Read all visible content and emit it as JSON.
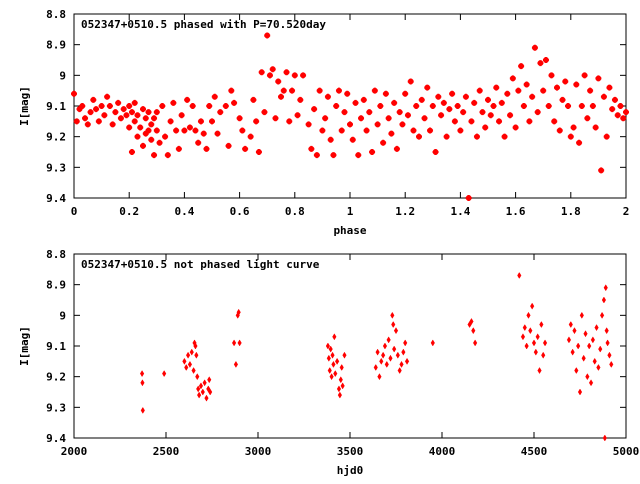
{
  "chart_data": [
    {
      "type": "scatter",
      "title": "052347+0510.5 phased with P=70.520day",
      "xlabel": "phase",
      "ylabel": "I[mag]",
      "xlim": [
        0,
        2
      ],
      "ylim": [
        8.8,
        9.4
      ],
      "y_inverted": true,
      "grid": false,
      "marker": "star",
      "color": "#ff0000",
      "xticks": [
        "0",
        "0.2",
        "0.4",
        "0.6",
        "0.8",
        "1",
        "1.2",
        "1.4",
        "1.6",
        "1.8",
        "2"
      ],
      "xtick_values": [
        0,
        0.2,
        0.4,
        0.6,
        0.8,
        1.0,
        1.2,
        1.4,
        1.6,
        1.8,
        2.0
      ],
      "yticks": [
        "8.8",
        "8.9",
        "9",
        "9.1",
        "9.2",
        "9.3",
        "9.4"
      ],
      "ytick_values": [
        8.8,
        8.9,
        9.0,
        9.1,
        9.2,
        9.3,
        9.4
      ],
      "points": [
        [
          0.0,
          9.06
        ],
        [
          0.01,
          9.15
        ],
        [
          0.02,
          9.11
        ],
        [
          0.03,
          9.1
        ],
        [
          0.04,
          9.14
        ],
        [
          0.05,
          9.16
        ],
        [
          0.06,
          9.12
        ],
        [
          0.07,
          9.08
        ],
        [
          0.08,
          9.11
        ],
        [
          0.09,
          9.15
        ],
        [
          0.1,
          9.1
        ],
        [
          0.11,
          9.13
        ],
        [
          0.12,
          9.07
        ],
        [
          0.13,
          9.1
        ],
        [
          0.14,
          9.16
        ],
        [
          0.15,
          9.12
        ],
        [
          0.16,
          9.09
        ],
        [
          0.17,
          9.14
        ],
        [
          0.18,
          9.11
        ],
        [
          0.19,
          9.13
        ],
        [
          0.2,
          9.1
        ],
        [
          0.2,
          9.17
        ],
        [
          0.21,
          9.12
        ],
        [
          0.21,
          9.25
        ],
        [
          0.22,
          9.15
        ],
        [
          0.22,
          9.09
        ],
        [
          0.23,
          9.13
        ],
        [
          0.23,
          9.2
        ],
        [
          0.24,
          9.17
        ],
        [
          0.25,
          9.11
        ],
        [
          0.25,
          9.23
        ],
        [
          0.26,
          9.14
        ],
        [
          0.26,
          9.19
        ],
        [
          0.27,
          9.12
        ],
        [
          0.27,
          9.18
        ],
        [
          0.28,
          9.16
        ],
        [
          0.28,
          9.21
        ],
        [
          0.29,
          9.14
        ],
        [
          0.29,
          9.26
        ],
        [
          0.3,
          9.18
        ],
        [
          0.3,
          9.12
        ],
        [
          0.31,
          9.22
        ],
        [
          0.32,
          9.1
        ],
        [
          0.33,
          9.2
        ],
        [
          0.34,
          9.26
        ],
        [
          0.35,
          9.15
        ],
        [
          0.36,
          9.09
        ],
        [
          0.37,
          9.18
        ],
        [
          0.38,
          9.24
        ],
        [
          0.39,
          9.13
        ],
        [
          0.4,
          9.18
        ],
        [
          0.41,
          9.08
        ],
        [
          0.42,
          9.17
        ],
        [
          0.43,
          9.1
        ],
        [
          0.44,
          9.18
        ],
        [
          0.45,
          9.22
        ],
        [
          0.46,
          9.15
        ],
        [
          0.47,
          9.19
        ],
        [
          0.48,
          9.24
        ],
        [
          0.49,
          9.1
        ],
        [
          0.5,
          9.15
        ],
        [
          0.51,
          9.07
        ],
        [
          0.52,
          9.19
        ],
        [
          0.53,
          9.12
        ],
        [
          0.55,
          9.1
        ],
        [
          0.56,
          9.23
        ],
        [
          0.57,
          9.05
        ],
        [
          0.58,
          9.09
        ],
        [
          0.6,
          9.14
        ],
        [
          0.61,
          9.18
        ],
        [
          0.62,
          9.24
        ],
        [
          0.64,
          9.2
        ],
        [
          0.65,
          9.08
        ],
        [
          0.66,
          9.15
        ],
        [
          0.67,
          9.25
        ],
        [
          0.68,
          8.99
        ],
        [
          0.69,
          9.12
        ],
        [
          0.7,
          8.87
        ],
        [
          0.71,
          9.0
        ],
        [
          0.72,
          8.98
        ],
        [
          0.73,
          9.14
        ],
        [
          0.74,
          9.02
        ],
        [
          0.75,
          9.07
        ],
        [
          0.76,
          9.05
        ],
        [
          0.77,
          8.99
        ],
        [
          0.78,
          9.15
        ],
        [
          0.79,
          9.05
        ],
        [
          0.8,
          9.0
        ],
        [
          0.81,
          9.13
        ],
        [
          0.82,
          9.08
        ],
        [
          0.83,
          9.0
        ],
        [
          0.85,
          9.16
        ],
        [
          0.86,
          9.24
        ],
        [
          0.87,
          9.11
        ],
        [
          0.88,
          9.26
        ],
        [
          0.89,
          9.05
        ],
        [
          0.9,
          9.18
        ],
        [
          0.91,
          9.14
        ],
        [
          0.92,
          9.07
        ],
        [
          0.93,
          9.21
        ],
        [
          0.94,
          9.26
        ],
        [
          0.95,
          9.1
        ],
        [
          0.96,
          9.05
        ],
        [
          0.97,
          9.18
        ],
        [
          0.98,
          9.12
        ],
        [
          0.99,
          9.06
        ],
        [
          1.0,
          9.16
        ],
        [
          1.01,
          9.21
        ],
        [
          1.02,
          9.09
        ],
        [
          1.03,
          9.26
        ],
        [
          1.04,
          9.14
        ],
        [
          1.05,
          9.08
        ],
        [
          1.06,
          9.18
        ],
        [
          1.07,
          9.12
        ],
        [
          1.08,
          9.25
        ],
        [
          1.09,
          9.05
        ],
        [
          1.1,
          9.16
        ],
        [
          1.11,
          9.1
        ],
        [
          1.12,
          9.22
        ],
        [
          1.13,
          9.06
        ],
        [
          1.14,
          9.14
        ],
        [
          1.15,
          9.19
        ],
        [
          1.16,
          9.09
        ],
        [
          1.17,
          9.24
        ],
        [
          1.18,
          9.12
        ],
        [
          1.19,
          9.16
        ],
        [
          1.2,
          9.06
        ],
        [
          1.21,
          9.13
        ],
        [
          1.22,
          9.02
        ],
        [
          1.23,
          9.18
        ],
        [
          1.24,
          9.1
        ],
        [
          1.25,
          9.2
        ],
        [
          1.26,
          9.08
        ],
        [
          1.27,
          9.14
        ],
        [
          1.28,
          9.04
        ],
        [
          1.29,
          9.18
        ],
        [
          1.3,
          9.1
        ],
        [
          1.31,
          9.25
        ],
        [
          1.32,
          9.07
        ],
        [
          1.33,
          9.13
        ],
        [
          1.34,
          9.09
        ],
        [
          1.35,
          9.2
        ],
        [
          1.36,
          9.11
        ],
        [
          1.37,
          9.06
        ],
        [
          1.38,
          9.15
        ],
        [
          1.39,
          9.1
        ],
        [
          1.4,
          9.18
        ],
        [
          1.41,
          9.12
        ],
        [
          1.42,
          9.07
        ],
        [
          1.43,
          9.4
        ],
        [
          1.44,
          9.15
        ],
        [
          1.45,
          9.09
        ],
        [
          1.46,
          9.2
        ],
        [
          1.47,
          9.05
        ],
        [
          1.48,
          9.12
        ],
        [
          1.49,
          9.17
        ],
        [
          1.5,
          9.08
        ],
        [
          1.51,
          9.13
        ],
        [
          1.52,
          9.1
        ],
        [
          1.53,
          9.04
        ],
        [
          1.54,
          9.15
        ],
        [
          1.55,
          9.09
        ],
        [
          1.56,
          9.2
        ],
        [
          1.57,
          9.06
        ],
        [
          1.58,
          9.13
        ],
        [
          1.59,
          9.01
        ],
        [
          1.6,
          9.17
        ],
        [
          1.61,
          9.05
        ],
        [
          1.62,
          8.97
        ],
        [
          1.63,
          9.1
        ],
        [
          1.64,
          9.03
        ],
        [
          1.65,
          9.15
        ],
        [
          1.66,
          9.07
        ],
        [
          1.67,
          8.91
        ],
        [
          1.68,
          9.12
        ],
        [
          1.69,
          8.96
        ],
        [
          1.7,
          9.05
        ],
        [
          1.71,
          8.95
        ],
        [
          1.72,
          9.1
        ],
        [
          1.73,
          9.0
        ],
        [
          1.74,
          9.15
        ],
        [
          1.75,
          9.04
        ],
        [
          1.76,
          9.18
        ],
        [
          1.77,
          9.08
        ],
        [
          1.78,
          9.02
        ],
        [
          1.79,
          9.1
        ],
        [
          1.8,
          9.2
        ],
        [
          1.81,
          9.17
        ],
        [
          1.82,
          9.03
        ],
        [
          1.83,
          9.22
        ],
        [
          1.84,
          9.1
        ],
        [
          1.85,
          9.0
        ],
        [
          1.86,
          9.14
        ],
        [
          1.87,
          9.05
        ],
        [
          1.88,
          9.1
        ],
        [
          1.89,
          9.17
        ],
        [
          1.9,
          9.01
        ],
        [
          1.91,
          9.31
        ],
        [
          1.92,
          9.07
        ],
        [
          1.93,
          9.2
        ],
        [
          1.94,
          9.04
        ],
        [
          1.95,
          9.11
        ],
        [
          1.96,
          9.08
        ],
        [
          1.97,
          9.13
        ],
        [
          1.98,
          9.1
        ],
        [
          1.99,
          9.14
        ],
        [
          2.0,
          9.12
        ]
      ]
    },
    {
      "type": "scatter",
      "title": "052347+0510.5 not phased light curve",
      "xlabel": "hjd0",
      "ylabel": "I[mag]",
      "xlim": [
        2000,
        5000
      ],
      "ylim": [
        8.8,
        9.4
      ],
      "y_inverted": true,
      "grid": false,
      "marker": "diamond",
      "color": "#ff0000",
      "xticks": [
        "2000",
        "2500",
        "3000",
        "3500",
        "4000",
        "4500",
        "5000"
      ],
      "xtick_values": [
        2000,
        2500,
        3000,
        3500,
        4000,
        4500,
        5000
      ],
      "yticks": [
        "8.8",
        "8.9",
        "9",
        "9.1",
        "9.2",
        "9.3",
        "9.4"
      ],
      "ytick_values": [
        8.8,
        8.9,
        9.0,
        9.1,
        9.2,
        9.3,
        9.4
      ],
      "points": [
        [
          2370,
          9.19
        ],
        [
          2372,
          9.22
        ],
        [
          2374,
          9.31
        ],
        [
          2490,
          9.19
        ],
        [
          2600,
          9.15
        ],
        [
          2610,
          9.17
        ],
        [
          2620,
          9.13
        ],
        [
          2630,
          9.16
        ],
        [
          2640,
          9.12
        ],
        [
          2650,
          9.18
        ],
        [
          2655,
          9.09
        ],
        [
          2660,
          9.1
        ],
        [
          2665,
          9.13
        ],
        [
          2670,
          9.2
        ],
        [
          2675,
          9.24
        ],
        [
          2680,
          9.26
        ],
        [
          2690,
          9.23
        ],
        [
          2700,
          9.25
        ],
        [
          2710,
          9.22
        ],
        [
          2720,
          9.27
        ],
        [
          2730,
          9.24
        ],
        [
          2735,
          9.21
        ],
        [
          2740,
          9.25
        ],
        [
          2870,
          9.09
        ],
        [
          2880,
          9.16
        ],
        [
          2890,
          9.0
        ],
        [
          2895,
          8.99
        ],
        [
          2900,
          9.09
        ],
        [
          3380,
          9.1
        ],
        [
          3385,
          9.14
        ],
        [
          3390,
          9.18
        ],
        [
          3395,
          9.11
        ],
        [
          3400,
          9.2
        ],
        [
          3405,
          9.13
        ],
        [
          3410,
          9.16
        ],
        [
          3415,
          9.07
        ],
        [
          3420,
          9.19
        ],
        [
          3430,
          9.15
        ],
        [
          3440,
          9.24
        ],
        [
          3445,
          9.26
        ],
        [
          3450,
          9.21
        ],
        [
          3455,
          9.17
        ],
        [
          3460,
          9.23
        ],
        [
          3470,
          9.13
        ],
        [
          3640,
          9.17
        ],
        [
          3650,
          9.12
        ],
        [
          3660,
          9.2
        ],
        [
          3670,
          9.15
        ],
        [
          3680,
          9.13
        ],
        [
          3690,
          9.1
        ],
        [
          3700,
          9.16
        ],
        [
          3710,
          9.08
        ],
        [
          3720,
          9.14
        ],
        [
          3730,
          9.0
        ],
        [
          3735,
          9.03
        ],
        [
          3740,
          9.11
        ],
        [
          3750,
          9.05
        ],
        [
          3760,
          9.13
        ],
        [
          3770,
          9.18
        ],
        [
          3780,
          9.16
        ],
        [
          3790,
          9.12
        ],
        [
          3800,
          9.09
        ],
        [
          3810,
          9.15
        ],
        [
          3950,
          9.09
        ],
        [
          4150,
          9.03
        ],
        [
          4160,
          9.02
        ],
        [
          4170,
          9.05
        ],
        [
          4180,
          9.09
        ],
        [
          4420,
          8.87
        ],
        [
          4440,
          9.07
        ],
        [
          4450,
          9.04
        ],
        [
          4460,
          9.1
        ],
        [
          4470,
          9.0
        ],
        [
          4480,
          9.05
        ],
        [
          4490,
          8.97
        ],
        [
          4500,
          9.09
        ],
        [
          4510,
          9.12
        ],
        [
          4520,
          9.07
        ],
        [
          4530,
          9.18
        ],
        [
          4540,
          9.03
        ],
        [
          4550,
          9.13
        ],
        [
          4560,
          9.09
        ],
        [
          4690,
          9.08
        ],
        [
          4700,
          9.03
        ],
        [
          4710,
          9.12
        ],
        [
          4720,
          9.05
        ],
        [
          4730,
          9.18
        ],
        [
          4740,
          9.1
        ],
        [
          4750,
          9.25
        ],
        [
          4760,
          9.0
        ],
        [
          4770,
          9.14
        ],
        [
          4780,
          9.06
        ],
        [
          4790,
          9.2
        ],
        [
          4800,
          9.1
        ],
        [
          4810,
          9.22
        ],
        [
          4820,
          9.08
        ],
        [
          4830,
          9.15
        ],
        [
          4840,
          9.04
        ],
        [
          4850,
          9.17
        ],
        [
          4860,
          9.11
        ],
        [
          4870,
          9.0
        ],
        [
          4880,
          8.95
        ],
        [
          4885,
          9.4
        ],
        [
          4890,
          8.91
        ],
        [
          4895,
          9.05
        ],
        [
          4900,
          9.09
        ],
        [
          4910,
          9.13
        ],
        [
          4920,
          9.16
        ]
      ]
    }
  ]
}
